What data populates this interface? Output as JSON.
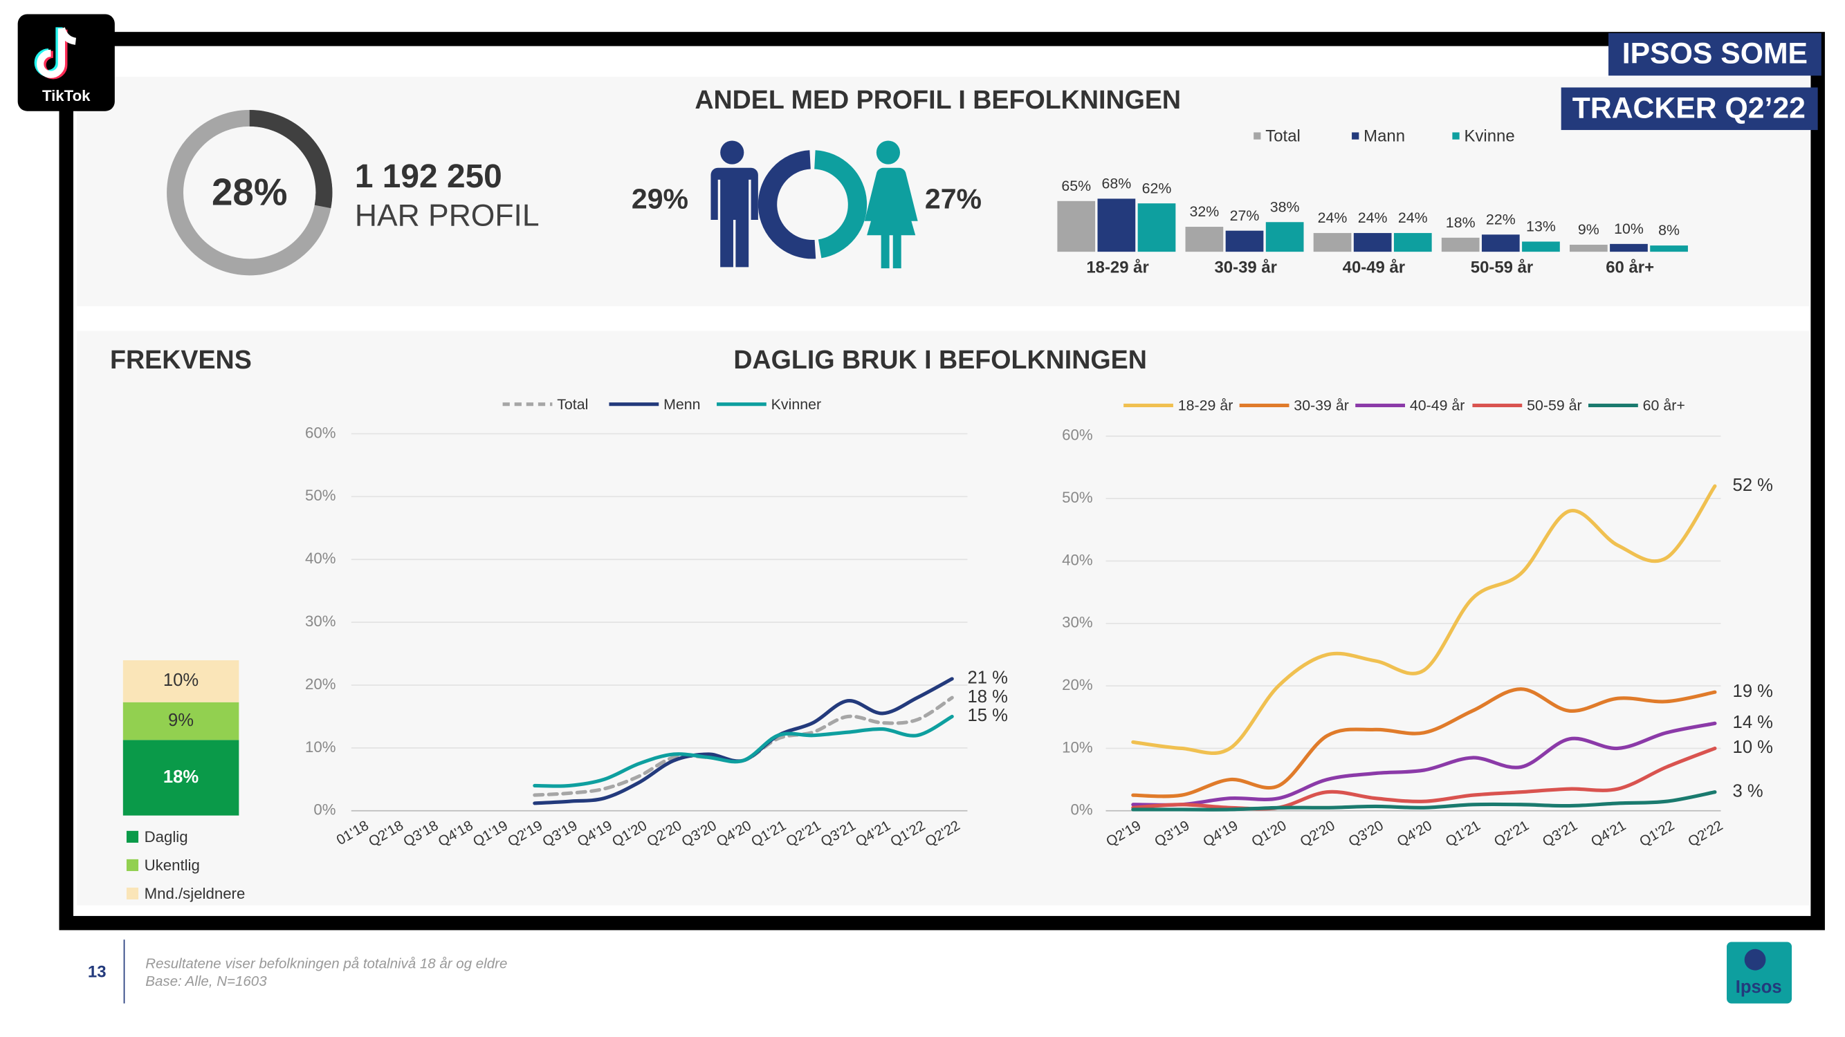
{
  "slide": {
    "logo_text": "TikTok",
    "badge_line1": "IPSOS SOME",
    "badge_line2": "TRACKER Q2’22",
    "top_title": "ANDEL MED PROFIL I BEFOLKNINGEN",
    "bottom_title": "DAGLIG BRUK I BEFOLKNINGEN",
    "page_number": 13,
    "footnote_line1": "Resultatene viser befolkningen på totalnivå 18 år og eldre",
    "footnote_line2": "Base: Alle, N=1603",
    "brand": "Ipsos"
  },
  "chart_data": [
    {
      "type": "donut",
      "values": [
        28
      ],
      "value_labels": [
        "28%"
      ],
      "color": "#404040",
      "track_color": "#a6a6a6",
      "headline": "1 192 250",
      "subtitle": "HAR PROFIL"
    },
    {
      "type": "gender_donut",
      "values": [
        29,
        27
      ],
      "value_labels": [
        "29%",
        "27%"
      ],
      "colors": [
        "#233a7c",
        "#0e9f9f"
      ]
    },
    {
      "type": "bar",
      "categories": [
        "18-29 år",
        "30-39 år",
        "40-49 år",
        "50-59 år",
        "60 år+"
      ],
      "series": [
        {
          "name": "Total",
          "color": "#a6a6a6",
          "values": [
            65,
            32,
            24,
            18,
            9
          ],
          "value_labels": [
            "65%",
            "32%",
            "24%",
            "18%",
            "9%"
          ]
        },
        {
          "name": "Mann",
          "color": "#233a7c",
          "values": [
            68,
            27,
            24,
            22,
            10
          ],
          "value_labels": [
            "68%",
            "27%",
            "24%",
            "22%",
            "10%"
          ]
        },
        {
          "name": "Kvinne",
          "color": "#0e9f9f",
          "values": [
            62,
            38,
            24,
            13,
            8
          ],
          "value_labels": [
            "62%",
            "38%",
            "24%",
            "13%",
            "8%"
          ]
        }
      ]
    },
    {
      "type": "stacked_bar",
      "title": "FREKVENS",
      "series": [
        {
          "name": "Daglig",
          "color": "#0a9a49",
          "values": [
            18
          ],
          "value_labels": [
            "18%"
          ]
        },
        {
          "name": "Ukentlig",
          "color": "#92d050",
          "values": [
            9
          ],
          "value_labels": [
            "9%"
          ]
        },
        {
          "name": "Mnd./sjeldnere",
          "color": "#fae5b8",
          "values": [
            10
          ],
          "value_labels": [
            "10%"
          ]
        }
      ]
    },
    {
      "type": "line",
      "categories": [
        "01'18",
        "Q2'18",
        "Q3'18",
        "Q4'18",
        "Q1'19",
        "Q2'19",
        "Q3'19",
        "Q4'19",
        "Q1'20",
        "Q2'20",
        "Q3'20",
        "Q4'20",
        "Q1'21",
        "Q2'21",
        "Q3'21",
        "Q4'21",
        "Q1'22",
        "Q2'22"
      ],
      "ylim": [
        0,
        60
      ],
      "yticks": [
        {
          "value": 0,
          "label": "0%"
        },
        {
          "value": 10,
          "label": "10%"
        },
        {
          "value": 20,
          "label": "20%"
        },
        {
          "value": 30,
          "label": "30%"
        },
        {
          "value": 40,
          "label": "40%"
        },
        {
          "value": 50,
          "label": "50%"
        },
        {
          "value": 60,
          "label": "60%"
        }
      ],
      "grid": true,
      "series": [
        {
          "name": "Total",
          "color": "#a6a6a6",
          "dashed": true,
          "values": [
            null,
            null,
            null,
            null,
            null,
            2.5,
            2.8,
            3.5,
            5.5,
            8.5,
            8.5,
            8,
            11.5,
            12.5,
            15,
            14,
            14.5,
            18
          ],
          "value_labels": [
            null,
            null,
            null,
            null,
            null,
            null,
            null,
            null,
            null,
            null,
            null,
            null,
            null,
            null,
            null,
            null,
            null,
            "18 %"
          ]
        },
        {
          "name": "Menn",
          "color": "#233a7c",
          "dashed": false,
          "values": [
            null,
            null,
            null,
            null,
            null,
            1.2,
            1.5,
            2,
            4.5,
            8,
            9,
            8,
            12,
            14,
            17.5,
            15.5,
            18,
            21
          ],
          "value_labels": [
            null,
            null,
            null,
            null,
            null,
            null,
            null,
            null,
            null,
            null,
            null,
            null,
            null,
            null,
            null,
            null,
            null,
            "21 %"
          ]
        },
        {
          "name": "Kvinner",
          "color": "#0e9f9f",
          "dashed": false,
          "values": [
            null,
            null,
            null,
            null,
            null,
            4,
            4,
            5,
            7.5,
            9,
            8.5,
            8,
            12,
            12,
            12.5,
            13,
            12,
            15
          ],
          "value_labels": [
            null,
            null,
            null,
            null,
            null,
            null,
            null,
            null,
            null,
            null,
            null,
            null,
            null,
            null,
            null,
            null,
            null,
            "15 %"
          ]
        }
      ]
    },
    {
      "type": "line",
      "categories": [
        "Q2'19",
        "Q3'19",
        "Q4'19",
        "Q1'20",
        "Q2'20",
        "Q3'20",
        "Q4'20",
        "Q1'21",
        "Q2'21",
        "Q3'21",
        "Q4'21",
        "Q1'22",
        "Q2'22"
      ],
      "ylim": [
        0,
        60
      ],
      "yticks": [
        {
          "value": 0,
          "label": "0%"
        },
        {
          "value": 10,
          "label": "10%"
        },
        {
          "value": 20,
          "label": "20%"
        },
        {
          "value": 30,
          "label": "30%"
        },
        {
          "value": 40,
          "label": "40%"
        },
        {
          "value": 50,
          "label": "50%"
        },
        {
          "value": 60,
          "label": "60%"
        }
      ],
      "grid": true,
      "series": [
        {
          "name": "18-29 år",
          "color": "#f0c050",
          "dashed": false,
          "values": [
            11,
            10,
            10,
            20,
            25,
            24,
            22.5,
            34,
            38,
            48,
            42.5,
            40.5,
            52
          ],
          "value_labels": [
            null,
            null,
            null,
            null,
            null,
            null,
            null,
            null,
            null,
            null,
            null,
            null,
            "52 %"
          ]
        },
        {
          "name": "30-39 år",
          "color": "#e07b2a",
          "dashed": false,
          "values": [
            2.5,
            2.5,
            5,
            4,
            12,
            13,
            12.5,
            16,
            19.5,
            16,
            18,
            17.5,
            19
          ],
          "value_labels": [
            null,
            null,
            null,
            null,
            null,
            null,
            null,
            null,
            null,
            null,
            null,
            null,
            "19 %"
          ]
        },
        {
          "name": "40-49 år",
          "color": "#8b3aa8",
          "dashed": false,
          "values": [
            1,
            1,
            2,
            2,
            5,
            6,
            6.5,
            8.5,
            7,
            11.5,
            10,
            12.5,
            14
          ],
          "value_labels": [
            null,
            null,
            null,
            null,
            null,
            null,
            null,
            null,
            null,
            null,
            null,
            null,
            "14 %"
          ]
        },
        {
          "name": "50-59 år",
          "color": "#d9534f",
          "dashed": false,
          "values": [
            0.5,
            1,
            0.5,
            0.5,
            3,
            2,
            1.5,
            2.5,
            3,
            3.5,
            3.5,
            7,
            10
          ],
          "value_labels": [
            null,
            null,
            null,
            null,
            null,
            null,
            null,
            null,
            null,
            null,
            null,
            null,
            "10 %"
          ]
        },
        {
          "name": "60 år+",
          "color": "#1a7a6e",
          "dashed": false,
          "values": [
            0.2,
            0.2,
            0.2,
            0.5,
            0.5,
            0.7,
            0.5,
            1,
            1,
            0.8,
            1.2,
            1.5,
            3
          ],
          "value_labels": [
            null,
            null,
            null,
            null,
            null,
            null,
            null,
            null,
            null,
            null,
            null,
            null,
            "3 %"
          ]
        }
      ]
    }
  ]
}
